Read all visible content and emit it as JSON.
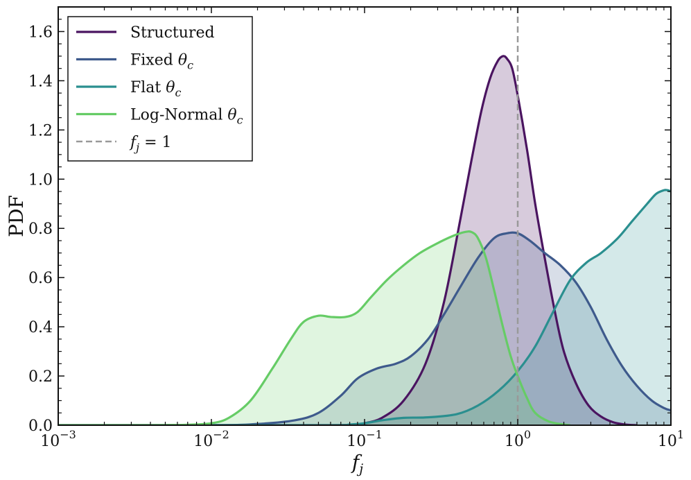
{
  "chart_data": {
    "type": "area",
    "xscale": "log",
    "xlim": [
      0.001,
      10
    ],
    "ylim": [
      0,
      1.7
    ],
    "xlabel": "f",
    "xlabel_sub": "j",
    "ylabel": "PDF",
    "grid": false,
    "legend_position": "top-left",
    "x_ticks": [
      {
        "value": 0.001,
        "base": "10",
        "exp": "−3"
      },
      {
        "value": 0.01,
        "base": "10",
        "exp": "−2"
      },
      {
        "value": 0.1,
        "base": "10",
        "exp": "−1"
      },
      {
        "value": 1,
        "base": "10",
        "exp": "0"
      },
      {
        "value": 10,
        "base": "10",
        "exp": "1"
      }
    ],
    "y_ticks": [
      {
        "value": 0.0,
        "label": "0.0"
      },
      {
        "value": 0.2,
        "label": "0.2"
      },
      {
        "value": 0.4,
        "label": "0.4"
      },
      {
        "value": 0.6,
        "label": "0.6"
      },
      {
        "value": 0.8,
        "label": "0.8"
      },
      {
        "value": 1.0,
        "label": "1.0"
      },
      {
        "value": 1.2,
        "label": "1.2"
      },
      {
        "value": 1.4,
        "label": "1.4"
      },
      {
        "value": 1.6,
        "label": "1.6"
      }
    ],
    "series": [
      {
        "name": "Structured",
        "color": "#4a1460",
        "fill_opacity": 0.22,
        "x": [
          0.001,
          0.05,
          0.085,
          0.1,
          0.13,
          0.18,
          0.25,
          0.33,
          0.42,
          0.5,
          0.58,
          0.66,
          0.74,
          0.8,
          0.85,
          0.92,
          1.0,
          1.15,
          1.3,
          1.5,
          1.75,
          2.0,
          2.4,
          2.9,
          3.5,
          4.2,
          5.0,
          6.0
        ],
        "y": [
          0.0,
          0.0,
          0.002,
          0.008,
          0.03,
          0.1,
          0.25,
          0.5,
          0.83,
          1.08,
          1.28,
          1.41,
          1.48,
          1.5,
          1.49,
          1.45,
          1.34,
          1.12,
          0.9,
          0.68,
          0.46,
          0.3,
          0.17,
          0.08,
          0.035,
          0.012,
          0.003,
          0.0
        ]
      },
      {
        "name": "Fixed θc",
        "color": "#3e5a8c",
        "fill_opacity": 0.2,
        "x": [
          0.001,
          0.01,
          0.02,
          0.035,
          0.05,
          0.07,
          0.09,
          0.12,
          0.16,
          0.2,
          0.26,
          0.33,
          0.42,
          0.55,
          0.7,
          0.85,
          1.0,
          1.2,
          1.5,
          1.9,
          2.4,
          3.0,
          3.8,
          4.8,
          6.0,
          7.5,
          9.0,
          10
        ],
        "y": [
          0.0,
          0.0,
          0.005,
          0.02,
          0.05,
          0.12,
          0.19,
          0.23,
          0.25,
          0.28,
          0.35,
          0.45,
          0.56,
          0.68,
          0.76,
          0.78,
          0.78,
          0.75,
          0.7,
          0.65,
          0.58,
          0.48,
          0.35,
          0.24,
          0.16,
          0.1,
          0.07,
          0.06
        ]
      },
      {
        "name": "Flat θc",
        "color": "#2a8f8f",
        "fill_opacity": 0.2,
        "x": [
          0.001,
          0.05,
          0.08,
          0.1,
          0.13,
          0.18,
          0.26,
          0.4,
          0.55,
          0.75,
          1.0,
          1.3,
          1.7,
          2.2,
          2.8,
          3.5,
          4.5,
          5.6,
          7.0,
          8.0,
          9.0,
          9.5,
          10
        ],
        "y": [
          0.0,
          0.0,
          0.003,
          0.008,
          0.02,
          0.03,
          0.032,
          0.045,
          0.08,
          0.14,
          0.22,
          0.32,
          0.46,
          0.59,
          0.66,
          0.7,
          0.76,
          0.83,
          0.9,
          0.94,
          0.955,
          0.955,
          0.95
        ]
      },
      {
        "name": "Log-Normal θc",
        "color": "#66cc66",
        "fill_opacity": 0.2,
        "x": [
          0.001,
          0.004,
          0.007,
          0.01,
          0.013,
          0.018,
          0.025,
          0.033,
          0.04,
          0.05,
          0.06,
          0.075,
          0.09,
          0.11,
          0.14,
          0.18,
          0.23,
          0.3,
          0.38,
          0.45,
          0.5,
          0.55,
          0.62,
          0.7,
          0.8,
          0.9,
          1.0,
          1.15,
          1.3,
          1.6,
          2.0,
          2.2
        ],
        "y": [
          0.0,
          0.0,
          0.002,
          0.008,
          0.03,
          0.1,
          0.23,
          0.35,
          0.42,
          0.445,
          0.44,
          0.44,
          0.46,
          0.52,
          0.59,
          0.65,
          0.7,
          0.74,
          0.77,
          0.785,
          0.785,
          0.76,
          0.68,
          0.55,
          0.4,
          0.28,
          0.2,
          0.11,
          0.05,
          0.015,
          0.003,
          0.0
        ]
      }
    ],
    "vline": {
      "x": 1,
      "color": "#999999",
      "label": "f",
      "label_sub": "j",
      "label_rest": " = 1"
    },
    "legend": [
      {
        "text": "Structured",
        "math": ""
      },
      {
        "text": "Fixed ",
        "math": "θ",
        "sub": "c"
      },
      {
        "text": "Flat ",
        "math": "θ",
        "sub": "c"
      },
      {
        "text": "Log-Normal ",
        "math": "θ",
        "sub": "c"
      }
    ]
  }
}
